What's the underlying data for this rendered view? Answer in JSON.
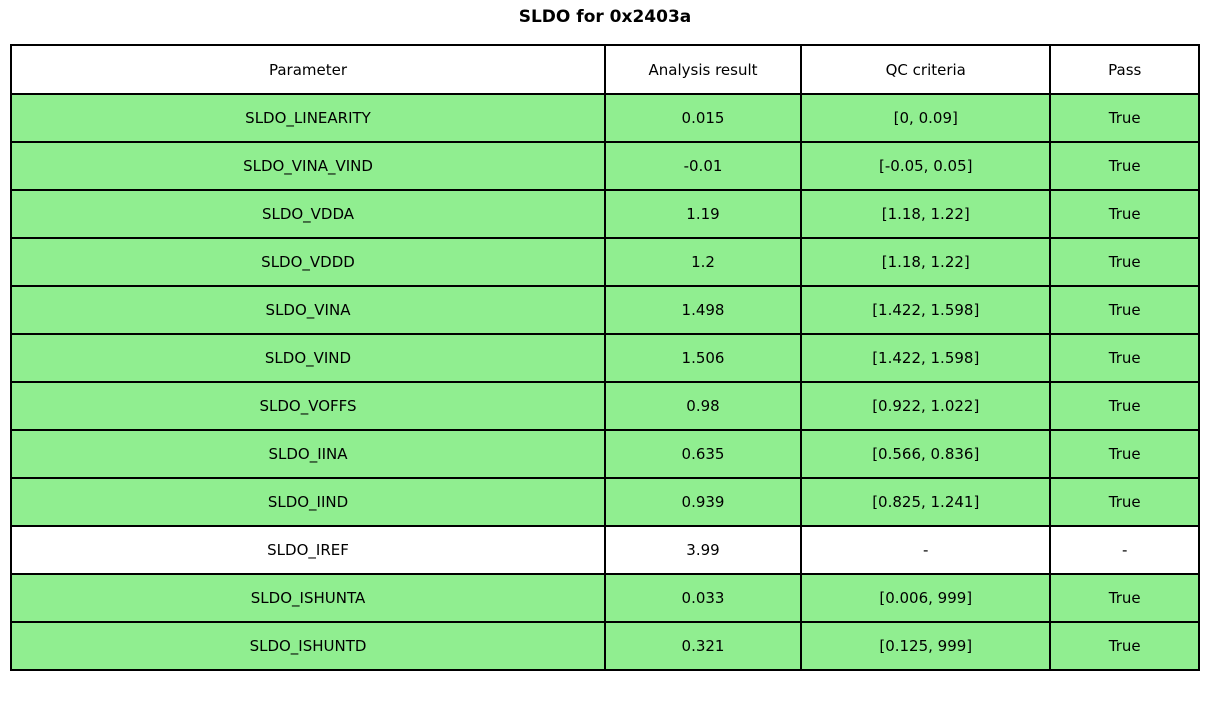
{
  "title": "SLDO for 0x2403a",
  "colors": {
    "pass_green": "#90EE90",
    "default_row": "#FFFFFF",
    "header_bg": "#FFFFFF",
    "border": "#000000",
    "text": "#000000"
  },
  "chart_data": {
    "type": "table",
    "title": "SLDO for 0x2403a",
    "columns": [
      "Parameter",
      "Analysis result",
      "QC criteria",
      "Pass"
    ],
    "rows": [
      {
        "parameter": "SLDO_LINEARITY",
        "analysis_result": "0.015",
        "qc_criteria": "[0, 0.09]",
        "pass": "True",
        "row_color": "#90EE90"
      },
      {
        "parameter": "SLDO_VINA_VIND",
        "analysis_result": "-0.01",
        "qc_criteria": "[-0.05, 0.05]",
        "pass": "True",
        "row_color": "#90EE90"
      },
      {
        "parameter": "SLDO_VDDA",
        "analysis_result": "1.19",
        "qc_criteria": "[1.18, 1.22]",
        "pass": "True",
        "row_color": "#90EE90"
      },
      {
        "parameter": "SLDO_VDDD",
        "analysis_result": "1.2",
        "qc_criteria": "[1.18, 1.22]",
        "pass": "True",
        "row_color": "#90EE90"
      },
      {
        "parameter": "SLDO_VINA",
        "analysis_result": "1.498",
        "qc_criteria": "[1.422, 1.598]",
        "pass": "True",
        "row_color": "#90EE90"
      },
      {
        "parameter": "SLDO_VIND",
        "analysis_result": "1.506",
        "qc_criteria": "[1.422, 1.598]",
        "pass": "True",
        "row_color": "#90EE90"
      },
      {
        "parameter": "SLDO_VOFFS",
        "analysis_result": "0.98",
        "qc_criteria": "[0.922, 1.022]",
        "pass": "True",
        "row_color": "#90EE90"
      },
      {
        "parameter": "SLDO_IINA",
        "analysis_result": "0.635",
        "qc_criteria": "[0.566, 0.836]",
        "pass": "True",
        "row_color": "#90EE90"
      },
      {
        "parameter": "SLDO_IIND",
        "analysis_result": "0.939",
        "qc_criteria": "[0.825, 1.241]",
        "pass": "True",
        "row_color": "#90EE90"
      },
      {
        "parameter": "SLDO_IREF",
        "analysis_result": "3.99",
        "qc_criteria": "-",
        "pass": "-",
        "row_color": "#FFFFFF"
      },
      {
        "parameter": "SLDO_ISHUNTA",
        "analysis_result": "0.033",
        "qc_criteria": "[0.006, 999]",
        "pass": "True",
        "row_color": "#90EE90"
      },
      {
        "parameter": "SLDO_ISHUNTD",
        "analysis_result": "0.321",
        "qc_criteria": "[0.125, 999]",
        "pass": "True",
        "row_color": "#90EE90"
      }
    ]
  }
}
